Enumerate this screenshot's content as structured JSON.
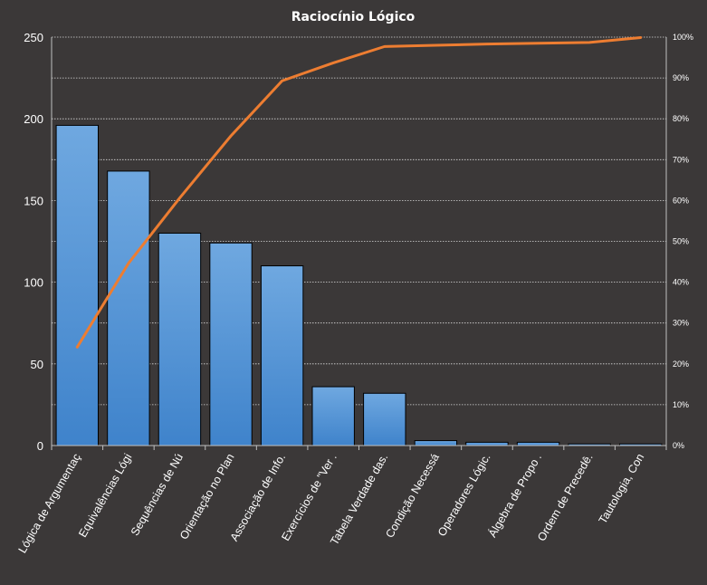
{
  "chart_data": {
    "type": "bar",
    "title": "Raciocínio  Lógico",
    "categories": [
      "Lógica de Argumentaç",
      "Equivalências Lógi",
      "Sequências de Nú",
      "Orientação no Plan",
      "Associação de Info.",
      "Exercícios de \"Ver .",
      "Tabela Verdade das.",
      "Condição Necessá",
      "Operadores Lógic.",
      "Álgebra de Propo .",
      "Ordem de Precedê.",
      "Tautologia, Con"
    ],
    "series": [
      {
        "type": "bar",
        "axis": "left",
        "color": "#5b9bd5",
        "values": [
          196,
          168,
          130,
          124,
          110,
          36,
          32,
          3,
          2,
          2,
          1,
          1
        ]
      },
      {
        "type": "line",
        "axis": "right",
        "color": "#ed7d31",
        "values": [
          24.1,
          44.6,
          60.6,
          75.8,
          89.3,
          93.7,
          97.7,
          98.0,
          98.3,
          98.5,
          98.7,
          99.9
        ]
      }
    ],
    "ylim_left": [
      0,
      250
    ],
    "ylim_right": [
      0,
      100
    ],
    "yticks_left": [
      "0",
      "50",
      "100",
      "150",
      "200",
      "250"
    ],
    "yticks_right": [
      "0%",
      "10%",
      "20%",
      "30%",
      "40%",
      "50%",
      "60%",
      "70%",
      "80%",
      "90%",
      "100%"
    ],
    "grid": true,
    "legend": "none"
  }
}
